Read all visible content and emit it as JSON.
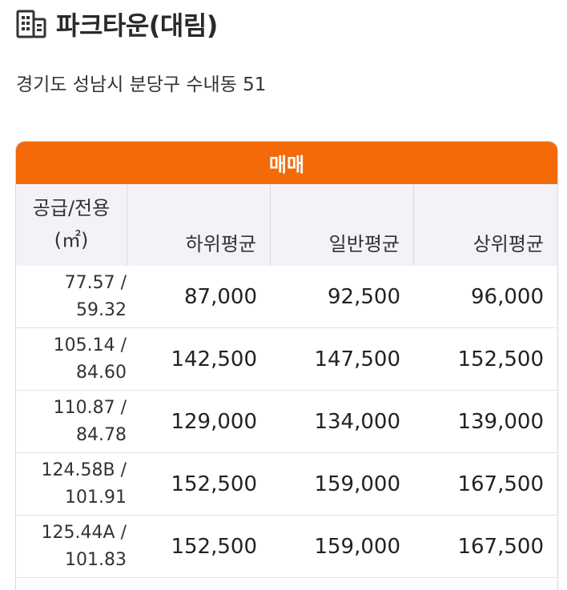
{
  "complex": {
    "icon": "building-icon",
    "name": "파크타운(대림)",
    "address": "경기도 성남시 분당구 수내동 51"
  },
  "table": {
    "caption": "매매",
    "accent_color": "#f46a08",
    "header": {
      "area_line1": "공급/전용",
      "area_line2": "(㎡)",
      "low": "하위평균",
      "mid": "일반평균",
      "high": "상위평균"
    },
    "rows": [
      {
        "supply": "77.57 /",
        "exclusive": "59.32",
        "low": "87,000",
        "mid": "92,500",
        "high": "96,000"
      },
      {
        "supply": "105.14 /",
        "exclusive": "84.60",
        "low": "142,500",
        "mid": "147,500",
        "high": "152,500"
      },
      {
        "supply": "110.87 /",
        "exclusive": "84.78",
        "low": "129,000",
        "mid": "134,000",
        "high": "139,000"
      },
      {
        "supply": "124.58B /",
        "exclusive": "101.91",
        "low": "152,500",
        "mid": "159,000",
        "high": "167,500"
      },
      {
        "supply": "125.44A /",
        "exclusive": "101.83",
        "low": "152,500",
        "mid": "159,000",
        "high": "167,500"
      }
    ]
  }
}
